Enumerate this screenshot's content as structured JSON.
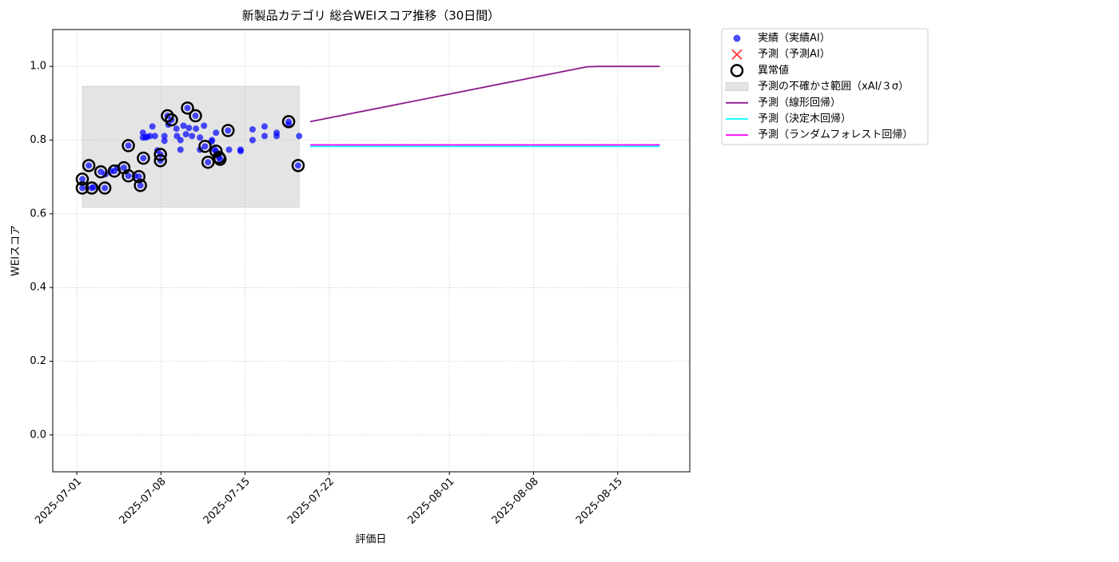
{
  "chart_data": {
    "type": "scatter",
    "title": "新製品カテゴリ 総合WEIスコア推移（30日間）",
    "x_label": "評価日",
    "y_label": "WEIスコア",
    "xlim": [
      "2025-06-29",
      "2025-08-21"
    ],
    "xticks": [
      "2025-07-01",
      "2025-07-08",
      "2025-07-15",
      "2025-07-22",
      "2025-08-01",
      "2025-08-08",
      "2025-08-15"
    ],
    "ylim": [
      -0.1,
      1.1
    ],
    "yticks": [
      {
        "value": 0,
        "label": "0.0"
      },
      0.2,
      0.4,
      0.6,
      0.8,
      {
        "value": 1,
        "label": "1.0"
      }
    ],
    "grid": true,
    "legend": "outside upper right",
    "series": [
      {
        "name": "実績（実績AI）",
        "type": "scatter",
        "marker": "dot",
        "color": "#0000ff",
        "x": [
          "2025-07-01T11:00",
          "2025-07-01T11:00",
          "2025-07-02T00:00",
          "2025-07-02T06:00",
          "2025-07-02T09:00",
          "2025-07-03T00:00",
          "2025-07-03T08:00",
          "2025-07-03T09:00",
          "2025-07-03T20:00",
          "2025-07-04T03:00",
          "2025-07-04T09:00",
          "2025-07-04T22:00",
          "2025-07-05T07:00",
          "2025-07-05T07:00",
          "2025-07-05T20:00",
          "2025-07-06T04:00",
          "2025-07-06T07:00",
          "2025-07-06T12:00",
          "2025-07-06T12:00",
          "2025-07-06T13:00",
          "2025-07-06T17:00",
          "2025-07-06T21:00",
          "2025-07-07T02:00",
          "2025-07-07T07:00",
          "2025-07-07T12:00",
          "2025-07-07T17:00",
          "2025-07-07T23:00",
          "2025-07-07T23:00",
          "2025-07-08T07:00",
          "2025-07-08T07:00",
          "2025-07-08T13:00",
          "2025-07-08T15:00",
          "2025-07-08T21:00",
          "2025-07-09T07:00",
          "2025-07-09T08:00",
          "2025-07-09T15:00",
          "2025-07-09T15:00",
          "2025-07-09T21:00",
          "2025-07-10T02:00",
          "2025-07-10T05:00",
          "2025-07-10T08:00",
          "2025-07-10T14:00",
          "2025-07-10T21:00",
          "2025-07-10T22:00",
          "2025-07-11T06:00",
          "2025-07-11T06:00",
          "2025-07-11T14:00",
          "2025-07-11T16:00",
          "2025-07-11T22:00",
          "2025-07-12T05:00",
          "2025-07-12T06:00",
          "2025-07-12T11:00",
          "2025-07-12T14:00",
          "2025-07-12T14:00",
          "2025-07-12T20:00",
          "2025-07-12T22:00",
          "2025-07-13T14:00",
          "2025-07-13T16:00",
          "2025-07-14T15:00",
          "2025-07-14T15:00",
          "2025-07-15T15:00",
          "2025-07-15T15:00",
          "2025-07-16T15:00",
          "2025-07-16T15:00",
          "2025-07-17T15:00",
          "2025-07-17T15:00",
          "2025-07-18T15:00",
          "2025-07-18T15:00",
          "2025-07-19T10:00",
          "2025-07-19T12:00"
        ],
        "values": [
          0.694,
          0.67,
          0.731,
          0.67,
          0.672,
          0.714,
          0.67,
          0.707,
          0.716,
          0.716,
          0.725,
          0.725,
          0.785,
          0.703,
          0.703,
          0.701,
          0.677,
          0.82,
          0.807,
          0.751,
          0.807,
          0.809,
          0.811,
          0.837,
          0.811,
          0.772,
          0.744,
          0.761,
          0.811,
          0.798,
          0.866,
          0.842,
          0.855,
          0.831,
          0.811,
          0.8,
          0.774,
          0.839,
          0.816,
          0.887,
          0.833,
          0.811,
          0.866,
          0.831,
          0.807,
          0.774,
          0.839,
          0.783,
          0.74,
          0.796,
          0.8,
          0.774,
          0.82,
          0.77,
          0.753,
          0.748,
          0.826,
          0.774,
          0.774,
          0.77,
          0.829,
          0.8,
          0.837,
          0.811,
          0.82,
          0.811,
          0.85,
          0.842,
          0.731,
          0.811
        ]
      },
      {
        "name": "予測（予測AI）",
        "type": "scatter",
        "marker": "x",
        "color": "#ff0000",
        "x": [],
        "values": []
      },
      {
        "name": "異常値",
        "type": "scatter",
        "marker": "ring",
        "color": "#000000",
        "x": [
          "2025-07-01T11:00",
          "2025-07-01T11:00",
          "2025-07-02T00:00",
          "2025-07-02T06:00",
          "2025-07-03T00:00",
          "2025-07-03T08:00",
          "2025-07-04T03:00",
          "2025-07-04T22:00",
          "2025-07-05T07:00",
          "2025-07-05T07:00",
          "2025-07-06T04:00",
          "2025-07-06T07:00",
          "2025-07-06T13:00",
          "2025-07-07T23:00",
          "2025-07-07T23:00",
          "2025-07-08T13:00",
          "2025-07-08T21:00",
          "2025-07-10T05:00",
          "2025-07-10T21:00",
          "2025-07-11T16:00",
          "2025-07-11T22:00",
          "2025-07-12T14:00",
          "2025-07-12T20:00",
          "2025-07-12T22:00",
          "2025-07-13T14:00",
          "2025-07-18T15:00",
          "2025-07-19T10:00"
        ],
        "values": [
          0.694,
          0.67,
          0.731,
          0.67,
          0.714,
          0.67,
          0.716,
          0.725,
          0.785,
          0.703,
          0.701,
          0.677,
          0.751,
          0.744,
          0.761,
          0.866,
          0.855,
          0.887,
          0.866,
          0.783,
          0.74,
          0.77,
          0.753,
          0.748,
          0.826,
          0.85,
          0.731
        ]
      },
      {
        "name": "予測の不確かさ範囲（xAI/３σ）",
        "type": "band",
        "color": "#bbbbbb",
        "x": [
          "2025-07-01T11:00",
          "2025-07-19T12:00"
        ],
        "lower": [
          0.618,
          0.618
        ],
        "upper": [
          0.946,
          0.946
        ]
      },
      {
        "name": "予測（線形回帰）",
        "type": "line",
        "color": "#8b1a8b",
        "x": [
          "2025-07-20T10:00",
          "2025-08-12T00:00",
          "2025-08-12T12:00",
          "2025-08-13T12:00",
          "2025-08-18T12:00"
        ],
        "values": [
          0.85,
          0.996,
          0.999,
          1.0,
          1.0
        ]
      },
      {
        "name": "予測（決定木回帰）",
        "type": "line",
        "color": "#00ffff",
        "x": [
          "2025-07-20T10:00",
          "2025-08-18T12:00"
        ],
        "values": [
          0.783,
          0.783
        ]
      },
      {
        "name": "予測（ランダムフォレスト回帰）",
        "type": "line",
        "color": "#ff00ff",
        "x": [
          "2025-07-20T10:00",
          "2025-08-18T12:00"
        ],
        "values": [
          0.787,
          0.787
        ]
      }
    ]
  }
}
